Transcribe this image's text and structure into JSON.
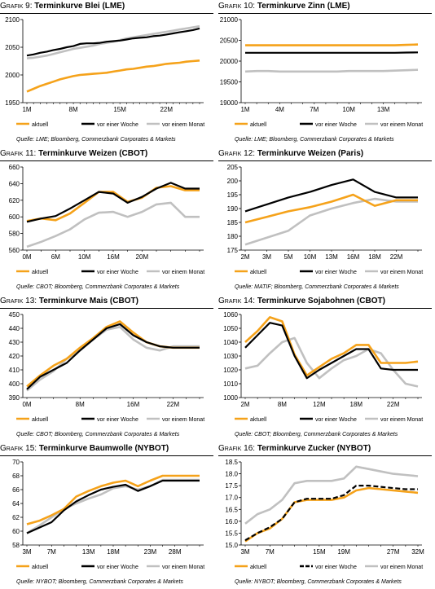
{
  "colors": {
    "aktuell": "#f5a21a",
    "woche": "#000000",
    "monat": "#c0c0c0"
  },
  "legend_labels": [
    "aktuell",
    "vor einer Woche",
    "vor einem Monat"
  ],
  "chart_data": [
    {
      "type": "line",
      "title_prefix": "Grafik 9:",
      "title": "Terminkurve Blei (LME)",
      "source": "Quelle: LME; Bloomberg, Commerzbank Corporates & Markets",
      "x_count": 27,
      "x_ticks": [
        {
          "i": 0,
          "label": "1M"
        },
        {
          "i": 7,
          "label": "8M"
        },
        {
          "i": 14,
          "label": "15M"
        },
        {
          "i": 21,
          "label": "22M"
        }
      ],
      "ylim": [
        1950,
        2100
      ],
      "y_ticks": [
        1950,
        2000,
        2050,
        2100
      ],
      "series": [
        {
          "name": "aktuell",
          "style": "solid",
          "values": [
            1970,
            1975,
            1980,
            1984,
            1988,
            1992,
            1995,
            1998,
            2000,
            2001,
            2002,
            2003,
            2004,
            2006,
            2008,
            2010,
            2011,
            2013,
            2015,
            2016,
            2018,
            2020,
            2021,
            2022,
            2024,
            2025,
            2026
          ]
        },
        {
          "name": "vor einer Woche",
          "style": "solid",
          "values": [
            2035,
            2037,
            2040,
            2042,
            2045,
            2047,
            2050,
            2052,
            2056,
            2057,
            2057,
            2058,
            2060,
            2061,
            2062,
            2064,
            2066,
            2067,
            2068,
            2070,
            2071,
            2073,
            2075,
            2077,
            2079,
            2081,
            2084
          ]
        },
        {
          "name": "vor einem Monat",
          "style": "solid",
          "values": [
            2030,
            2031,
            2033,
            2035,
            2038,
            2041,
            2044,
            2047,
            2049,
            2051,
            2053,
            2056,
            2058,
            2060,
            2063,
            2066,
            2068,
            2070,
            2072,
            2074,
            2076,
            2078,
            2080,
            2082,
            2084,
            2086,
            2088
          ]
        }
      ]
    },
    {
      "type": "line",
      "title_prefix": "Grafik 10:",
      "title": "Terminkurve Zinn (LME)",
      "source": "Quelle: LME; Bloomberg, Commerzbank Corporates & Markets",
      "x_count": 16,
      "x_ticks": [
        {
          "i": 0,
          "label": "1M"
        },
        {
          "i": 3,
          "label": "4M"
        },
        {
          "i": 6,
          "label": "7M"
        },
        {
          "i": 9,
          "label": "10M"
        },
        {
          "i": 12,
          "label": "13M"
        }
      ],
      "ylim": [
        19000,
        21000
      ],
      "y_ticks": [
        19000,
        19500,
        20000,
        20500,
        21000
      ],
      "series": [
        {
          "name": "aktuell",
          "style": "solid",
          "values": [
            20380,
            20380,
            20380,
            20380,
            20380,
            20380,
            20380,
            20380,
            20380,
            20380,
            20380,
            20380,
            20380,
            20380,
            20390,
            20400
          ]
        },
        {
          "name": "vor einer Woche",
          "style": "solid",
          "values": [
            20200,
            20200,
            20200,
            20200,
            20200,
            20200,
            20200,
            20200,
            20200,
            20200,
            20200,
            20200,
            20200,
            20200,
            20205,
            20210
          ]
        },
        {
          "name": "vor einem Monat",
          "style": "solid",
          "values": [
            19750,
            19760,
            19760,
            19750,
            19750,
            19750,
            19750,
            19750,
            19750,
            19760,
            19760,
            19760,
            19760,
            19770,
            19780,
            19790
          ]
        }
      ]
    },
    {
      "type": "line",
      "title_prefix": "Grafik 11:",
      "title": "Terminkurve Weizen (CBOT)",
      "source": "Quelle: CBOT; Bloomberg, Commerzbank Corporates & Markets",
      "x_count": 13,
      "x_ticks": [
        {
          "i": 0,
          "label": "0M"
        },
        {
          "i": 2,
          "label": "6M"
        },
        {
          "i": 4,
          "label": "10M"
        },
        {
          "i": 6,
          "label": "16M"
        },
        {
          "i": 8,
          "label": "20M"
        }
      ],
      "ylim": [
        560,
        660
      ],
      "y_ticks": [
        560,
        580,
        600,
        620,
        640,
        660
      ],
      "series": [
        {
          "name": "aktuell",
          "style": "solid",
          "values": [
            595,
            598,
            596,
            604,
            617,
            630,
            630,
            618,
            623,
            635,
            637,
            632,
            632
          ]
        },
        {
          "name": "vor einer Woche",
          "style": "solid",
          "values": [
            594,
            598,
            601,
            610,
            620,
            630,
            628,
            617,
            624,
            634,
            641,
            634,
            634
          ]
        },
        {
          "name": "vor einem Monat",
          "style": "solid",
          "values": [
            564,
            570,
            577,
            585,
            597,
            605,
            606,
            600,
            606,
            615,
            617,
            600,
            600
          ]
        }
      ]
    },
    {
      "type": "line",
      "title_prefix": "Grafik 12:",
      "title": "Terminkurve Weizen (Paris)",
      "source": "Quelle: MATIF; Bloomberg, Commerzbank Corporates & Markets",
      "x_count": 9,
      "x_ticks": [
        {
          "i": 0,
          "label": "2M"
        },
        {
          "i": 1,
          "label": "3M"
        },
        {
          "i": 2,
          "label": "5M"
        },
        {
          "i": 3,
          "label": "10M"
        },
        {
          "i": 4,
          "label": "13M"
        },
        {
          "i": 5,
          "label": "16M"
        },
        {
          "i": 6,
          "label": "18M"
        },
        {
          "i": 7,
          "label": "22M"
        }
      ],
      "ylim": [
        175,
        205
      ],
      "y_ticks": [
        175,
        180,
        185,
        190,
        195,
        200,
        205
      ],
      "series": [
        {
          "name": "aktuell",
          "style": "solid",
          "values": [
            185,
            187,
            189,
            190.5,
            192.5,
            195,
            191,
            193,
            193
          ]
        },
        {
          "name": "vor einer Woche",
          "style": "solid",
          "values": [
            189,
            191.5,
            194,
            196,
            198.5,
            200.5,
            196,
            194,
            194
          ]
        },
        {
          "name": "vor einem Monat",
          "style": "solid",
          "values": [
            177,
            179.5,
            182,
            187.5,
            190,
            192,
            193.5,
            192.5,
            192.5
          ]
        }
      ]
    },
    {
      "type": "line",
      "title_prefix": "Grafik 13:",
      "title": "Terminkurve Mais (CBOT)",
      "source": "Quelle: CBOT; Bloomberg, Commerzbank Corporates & Markets",
      "x_count": 14,
      "x_ticks": [
        {
          "i": 0,
          "label": "0M"
        },
        {
          "i": 4,
          "label": "8M"
        },
        {
          "i": 8,
          "label": "16M"
        },
        {
          "i": 11,
          "label": "22M"
        }
      ],
      "ylim": [
        390,
        450
      ],
      "y_ticks": [
        390,
        400,
        410,
        420,
        430,
        440,
        450
      ],
      "series": [
        {
          "name": "aktuell",
          "style": "solid",
          "values": [
            398,
            406,
            413,
            418,
            426,
            433,
            441,
            445,
            437,
            430,
            427,
            426,
            426,
            426
          ]
        },
        {
          "name": "vor einer Woche",
          "style": "solid",
          "values": [
            396,
            405,
            410,
            415,
            424,
            432,
            440,
            443,
            435,
            430,
            427,
            426,
            426,
            426
          ]
        },
        {
          "name": "vor einem Monat",
          "style": "solid",
          "values": [
            395,
            403,
            409,
            418,
            424,
            432,
            439,
            441,
            432,
            426,
            424,
            427,
            427,
            427
          ]
        }
      ]
    },
    {
      "type": "line",
      "title_prefix": "Grafik 14:",
      "title": "Terminkurve Sojabohnen (CBOT)",
      "source": "Quelle: CBOT; Bloomberg, Commerzbank Corporates & Markets",
      "x_count": 15,
      "x_ticks": [
        {
          "i": 0,
          "label": "2M"
        },
        {
          "i": 3,
          "label": "8M"
        },
        {
          "i": 6,
          "label": "12M"
        },
        {
          "i": 9,
          "label": "18M"
        },
        {
          "i": 12,
          "label": "22M"
        }
      ],
      "ylim": [
        1000,
        1060
      ],
      "y_ticks": [
        1000,
        1010,
        1020,
        1030,
        1040,
        1050,
        1060
      ],
      "series": [
        {
          "name": "aktuell",
          "style": "solid",
          "values": [
            1040,
            1048,
            1058,
            1055,
            1031,
            1016,
            1022,
            1028,
            1032,
            1038,
            1038,
            1025,
            1025,
            1025,
            1026
          ]
        },
        {
          "name": "vor einer Woche",
          "style": "solid",
          "values": [
            1036,
            1045,
            1054,
            1052,
            1030,
            1014,
            1020,
            1025,
            1030,
            1035,
            1035,
            1021,
            1020,
            1020,
            1020
          ]
        },
        {
          "name": "vor einem Monat",
          "style": "solid",
          "values": [
            1021,
            1023,
            1032,
            1040,
            1043,
            1025,
            1014,
            1021,
            1027,
            1030,
            1035,
            1032,
            1020,
            1010,
            1008
          ]
        }
      ]
    },
    {
      "type": "line",
      "title_prefix": "Grafik 15:",
      "title": "Terminkurve Baumwolle (NYBOT)",
      "source": "Quelle: NYBOT; Bloomberg, Commerzbank Corporates & Markets",
      "x_count": 15,
      "x_ticks": [
        {
          "i": 0,
          "label": "3M"
        },
        {
          "i": 2,
          "label": "7M"
        },
        {
          "i": 5,
          "label": "13M"
        },
        {
          "i": 7,
          "label": "18M"
        },
        {
          "i": 10,
          "label": "23M"
        },
        {
          "i": 12,
          "label": "28M"
        }
      ],
      "ylim": [
        58,
        70
      ],
      "y_ticks": [
        58,
        60,
        62,
        64,
        66,
        68,
        70
      ],
      "series": [
        {
          "name": "aktuell",
          "style": "solid",
          "values": [
            61.0,
            61.5,
            62.3,
            63.2,
            65.0,
            65.8,
            66.5,
            67.0,
            67.3,
            66.5,
            67.3,
            68.0,
            68.0,
            68.0,
            68.0
          ]
        },
        {
          "name": "vor einer Woche",
          "style": "solid",
          "values": [
            59.7,
            60.5,
            61.3,
            63.0,
            64.3,
            65.2,
            66.0,
            66.4,
            66.7,
            65.8,
            66.5,
            67.3,
            67.3,
            67.3,
            67.3
          ]
        },
        {
          "name": "vor einem Monat",
          "style": "solid",
          "values": [
            59.7,
            60.8,
            62.0,
            63.2,
            64.0,
            64.7,
            65.3,
            66.2,
            66.5,
            66.0,
            66.5,
            67.4,
            67.4,
            67.4,
            67.4
          ]
        }
      ]
    },
    {
      "type": "line",
      "title_prefix": "Grafik 16:",
      "title": "Terminkurve Zucker (NYBOT)",
      "source": "Quelle: NYBOT; Bloomberg, Commerzbank Corporates & Markets",
      "x_count": 15,
      "x_ticks": [
        {
          "i": 0,
          "label": "3M"
        },
        {
          "i": 2,
          "label": "7M"
        },
        {
          "i": 6,
          "label": "15M"
        },
        {
          "i": 8,
          "label": "19M"
        },
        {
          "i": 12,
          "label": "27M"
        },
        {
          "i": 14,
          "label": "32M"
        }
      ],
      "ylim": [
        15.0,
        18.5
      ],
      "y_ticks": [
        15.0,
        15.5,
        16.0,
        16.5,
        17.0,
        17.5,
        18.0,
        18.5
      ],
      "series": [
        {
          "name": "aktuell",
          "style": "solid",
          "values": [
            15.15,
            15.5,
            15.7,
            16.1,
            16.8,
            16.9,
            16.9,
            16.9,
            17.0,
            17.3,
            17.4,
            17.35,
            17.3,
            17.25,
            17.2
          ]
        },
        {
          "name": "vor einer Woche",
          "style": "dashed",
          "values": [
            15.2,
            15.5,
            15.75,
            16.1,
            16.8,
            16.95,
            16.95,
            16.95,
            17.1,
            17.5,
            17.5,
            17.45,
            17.4,
            17.35,
            17.35
          ]
        },
        {
          "name": "vor einem Monat",
          "style": "solid",
          "values": [
            15.9,
            16.3,
            16.5,
            16.9,
            17.6,
            17.7,
            17.7,
            17.7,
            17.8,
            18.3,
            18.2,
            18.1,
            18.0,
            17.95,
            17.9
          ]
        }
      ]
    }
  ]
}
